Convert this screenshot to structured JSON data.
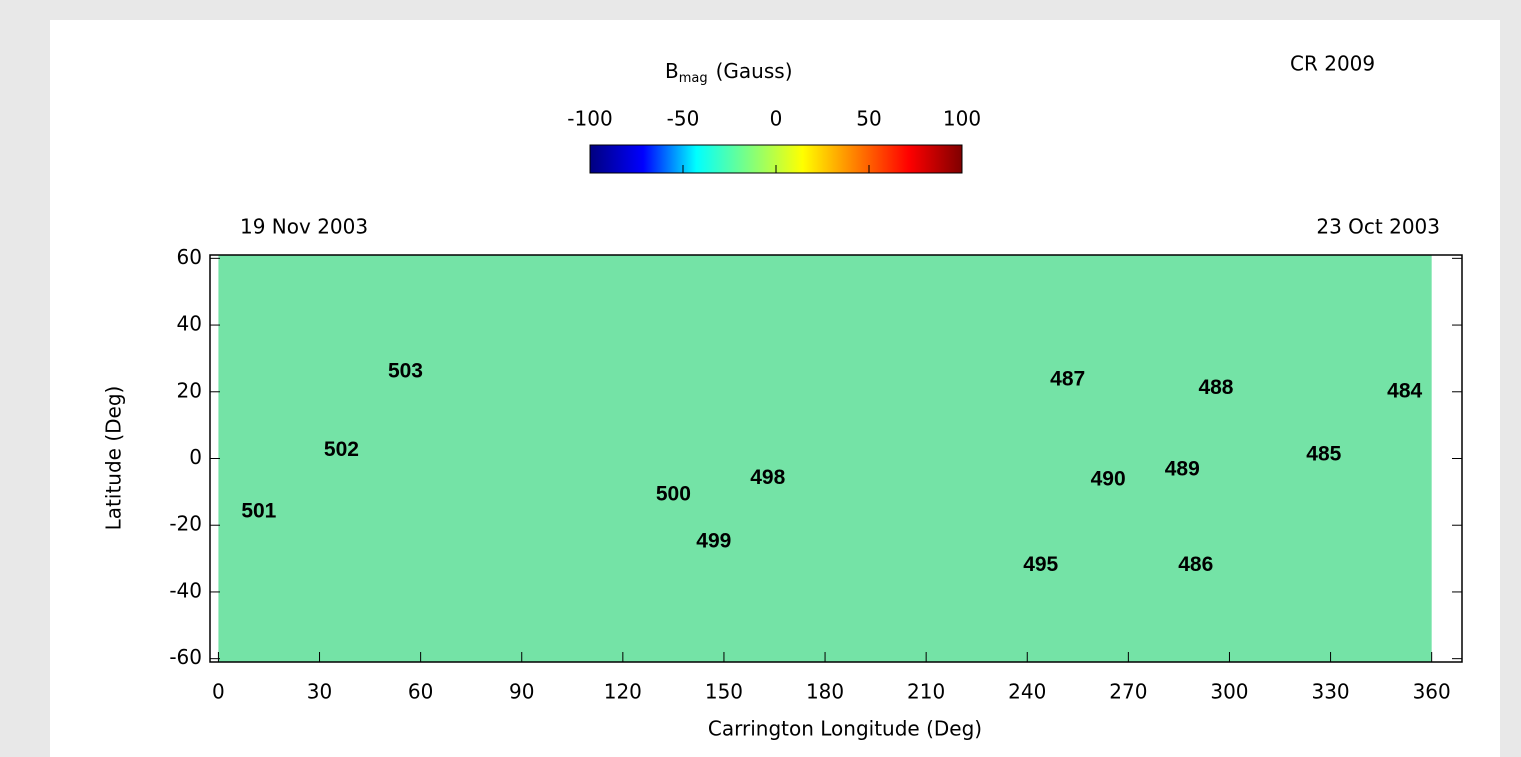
{
  "chart_data": {
    "type": "map",
    "title": "CR 2009",
    "colorbar": {
      "title": "B",
      "title_sub": "mag",
      "title_unit": "(Gauss)",
      "lim": [
        -100,
        100
      ],
      "ticks": [
        -100,
        -50,
        0,
        50,
        100
      ],
      "colors": [
        "#00007f",
        "#0000ff",
        "#00ffff",
        "#7fff7f",
        "#ffff00",
        "#ff7f00",
        "#ff0000",
        "#7f0000"
      ]
    },
    "date_left": "19 Nov 2003",
    "date_right": "23 Oct 2003",
    "x_label": "Carrington Longitude (Deg)",
    "y_label": "Latitude (Deg)",
    "xlim": [
      -2.5,
      369
    ],
    "ylim": [
      -61,
      61
    ],
    "xticks": [
      0,
      30,
      60,
      90,
      120,
      150,
      180,
      210,
      240,
      270,
      300,
      330,
      360
    ],
    "yticks": [
      -60,
      -40,
      -20,
      0,
      20,
      40,
      60
    ],
    "map_color": "#74e3a6",
    "annotations": [
      {
        "text": "503",
        "x": 55.5,
        "y": 26
      },
      {
        "text": "502",
        "x": 36.5,
        "y": 2.4
      },
      {
        "text": "501",
        "x": 12,
        "y": -16
      },
      {
        "text": "500",
        "x": 135,
        "y": -11
      },
      {
        "text": "498",
        "x": 163,
        "y": -6
      },
      {
        "text": "499",
        "x": 147,
        "y": -25
      },
      {
        "text": "487",
        "x": 252,
        "y": 23.5
      },
      {
        "text": "488",
        "x": 296,
        "y": 21
      },
      {
        "text": "484",
        "x": 352,
        "y": 20
      },
      {
        "text": "485",
        "x": 328,
        "y": 1
      },
      {
        "text": "490",
        "x": 264,
        "y": -6.5
      },
      {
        "text": "489",
        "x": 286,
        "y": -3.5
      },
      {
        "text": "495",
        "x": 244,
        "y": -32
      },
      {
        "text": "486",
        "x": 290,
        "y": -32
      }
    ]
  }
}
